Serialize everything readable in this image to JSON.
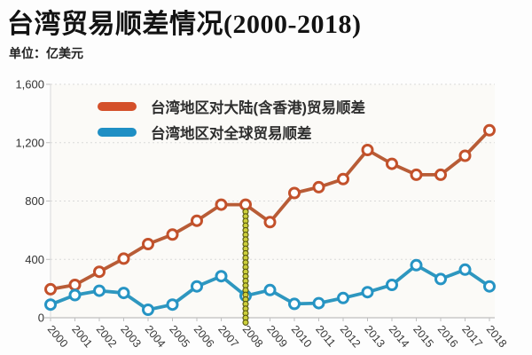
{
  "header": {
    "title": "台湾贸易顺差情况(2000-2018)",
    "unit_label": "单位：亿美元"
  },
  "chart_data": {
    "type": "line",
    "title": "台湾贸易顺差情况(2000-2018)",
    "unit": "亿美元",
    "x": [
      "2000",
      "2001",
      "2002",
      "2003",
      "2004",
      "2005",
      "2006",
      "2007",
      "2008",
      "2009",
      "2010",
      "2011",
      "2012",
      "2013",
      "2014",
      "2015",
      "2016",
      "2017",
      "2018"
    ],
    "series": [
      {
        "name": "台湾地区对大陆(含香港)贸易顺差",
        "color": "#d4502a",
        "line_color": "#b85c36",
        "marker_stroke": "#c3512b",
        "values": [
          195,
          225,
          315,
          405,
          505,
          570,
          665,
          775,
          775,
          655,
          855,
          895,
          950,
          1150,
          1055,
          980,
          980,
          1110,
          1285
        ]
      },
      {
        "name": "台湾地区对全球贸易顺差",
        "color": "#1f8fc4",
        "line_color": "#2e97bf",
        "marker_stroke": "#2694c4",
        "values": [
          90,
          155,
          185,
          170,
          55,
          90,
          215,
          285,
          150,
          190,
          95,
          100,
          135,
          175,
          225,
          360,
          265,
          330,
          215
        ]
      }
    ],
    "ylim": [
      0,
      1600
    ],
    "yticks": [
      0,
      400,
      800,
      1200,
      1600
    ],
    "ytick_labels": [
      "0",
      "400",
      "800",
      "1,200",
      "1,600"
    ],
    "grid": true,
    "legend_position": "top-left-inside",
    "annotation": {
      "type": "vertical-beaded-line",
      "x": "2008",
      "bead_color": "#cdd03c",
      "bead_outline": "#55550f"
    }
  },
  "colors": {
    "background": "#fdfdfd",
    "plot_background": "#fbfaf7",
    "grid": "#d9d9d9",
    "axis": "#bfbfbf",
    "title_text": "#131313",
    "label_text": "#3a3a3a"
  }
}
